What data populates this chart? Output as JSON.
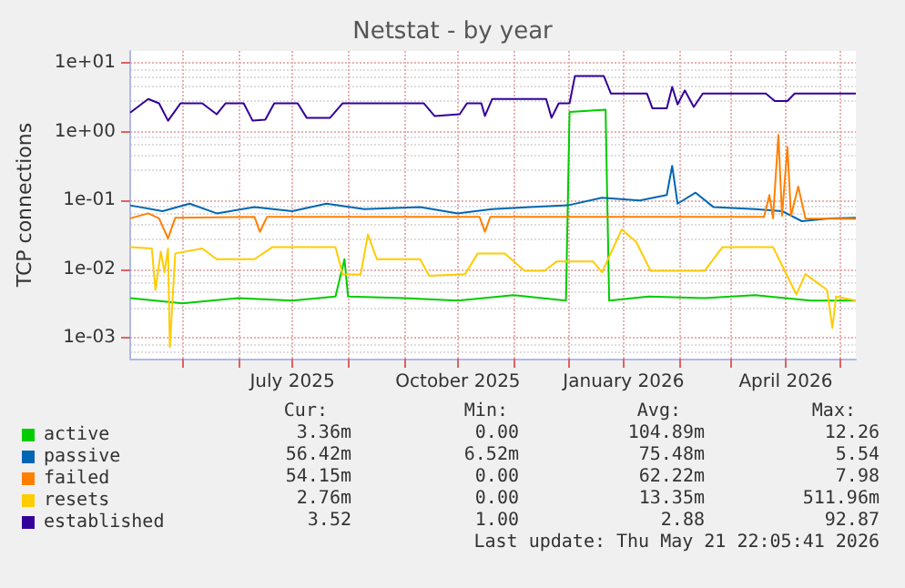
{
  "chart_data": {
    "type": "line",
    "title": "Netstat - by year",
    "ylabel": "TCP connections",
    "log": true,
    "grid": true,
    "legend": "bottom left",
    "marker": "none",
    "xlim": [
      "2025-04-02",
      "2026-05-10"
    ],
    "ylim": [
      0.0005,
      15
    ],
    "xticks": [
      {
        "value": "2025-05-01",
        "label": null
      },
      {
        "value": "2025-06-01",
        "label": null
      },
      {
        "value": "2025-07-01",
        "label": "July 2025"
      },
      {
        "value": "2025-08-01",
        "label": null
      },
      {
        "value": "2025-09-01",
        "label": null
      },
      {
        "value": "2025-10-01",
        "label": "October 2025"
      },
      {
        "value": "2025-11-01",
        "label": null
      },
      {
        "value": "2025-12-01",
        "label": null
      },
      {
        "value": "2026-01-01",
        "label": "January 2026"
      },
      {
        "value": "2026-02-01",
        "label": null
      },
      {
        "value": "2026-03-01",
        "label": null
      },
      {
        "value": "2026-04-01",
        "label": "April 2026"
      },
      {
        "value": "2026-05-01",
        "label": null
      }
    ],
    "yticks": [
      {
        "value": 0.001,
        "label": "1e-03"
      },
      {
        "value": 0.01,
        "label": "1e-02"
      },
      {
        "value": 0.1,
        "label": "1e-01"
      },
      {
        "value": 1,
        "label": "1e+00"
      },
      {
        "value": 10,
        "label": "1e+01"
      }
    ],
    "series": [
      {
        "name": "active",
        "color": "#00cc00",
        "x": [
          "2025-04-02",
          "2025-05-01",
          "2025-06-01",
          "2025-07-01",
          "2025-07-25",
          "2025-07-30",
          "2025-08-01",
          "2025-09-01",
          "2025-10-01",
          "2025-11-01",
          "2025-11-30",
          "2025-12-02",
          "2025-12-22",
          "2025-12-24",
          "2026-01-15",
          "2026-02-15",
          "2026-03-15",
          "2026-04-15",
          "2026-05-10"
        ],
        "values": [
          0.0038,
          0.0032,
          0.0038,
          0.0035,
          0.004,
          0.014,
          0.004,
          0.0038,
          0.0035,
          0.0042,
          0.0035,
          1.95,
          2.1,
          0.0035,
          0.004,
          0.0038,
          0.0042,
          0.0035,
          0.0035
        ]
      },
      {
        "name": "passive",
        "color": "#0066b3",
        "x": [
          "2025-04-02",
          "2025-04-20",
          "2025-05-05",
          "2025-05-20",
          "2025-06-10",
          "2025-07-01",
          "2025-07-20",
          "2025-08-10",
          "2025-09-10",
          "2025-10-01",
          "2025-10-20",
          "2025-11-10",
          "2025-12-01",
          "2025-12-20",
          "2026-01-10",
          "2026-01-25",
          "2026-01-28",
          "2026-01-31",
          "2026-02-10",
          "2026-02-20",
          "2026-03-15",
          "2026-03-30",
          "2026-04-10",
          "2026-04-25",
          "2026-05-10"
        ],
        "values": [
          0.085,
          0.07,
          0.09,
          0.065,
          0.08,
          0.07,
          0.09,
          0.075,
          0.08,
          0.065,
          0.075,
          0.08,
          0.085,
          0.11,
          0.1,
          0.12,
          0.32,
          0.09,
          0.13,
          0.08,
          0.075,
          0.07,
          0.05,
          0.055,
          0.056
        ]
      },
      {
        "name": "failed",
        "color": "#ff8000",
        "x": [
          "2025-04-02",
          "2025-04-12",
          "2025-04-18",
          "2025-04-23",
          "2025-04-27",
          "2025-06-10",
          "2025-06-13",
          "2025-06-17",
          "2025-10-13",
          "2025-10-16",
          "2025-10-19",
          "2026-03-20",
          "2026-03-23",
          "2026-03-25",
          "2026-03-28",
          "2026-03-30",
          "2026-04-02",
          "2026-04-04",
          "2026-04-08",
          "2026-04-12",
          "2026-05-10"
        ],
        "values": [
          0.055,
          0.065,
          0.055,
          0.028,
          0.056,
          0.058,
          0.035,
          0.058,
          0.058,
          0.035,
          0.058,
          0.058,
          0.12,
          0.055,
          0.9,
          0.06,
          0.6,
          0.06,
          0.16,
          0.055,
          0.054
        ]
      },
      {
        "name": "resets",
        "color": "#ffcc00",
        "x": [
          "2025-04-02",
          "2025-04-14",
          "2025-04-16",
          "2025-04-19",
          "2025-04-21",
          "2025-04-23",
          "2025-04-24",
          "2025-04-27",
          "2025-05-12",
          "2025-05-20",
          "2025-06-10",
          "2025-06-20",
          "2025-07-25",
          "2025-07-29",
          "2025-08-08",
          "2025-08-12",
          "2025-08-17",
          "2025-09-10",
          "2025-09-15",
          "2025-10-05",
          "2025-10-12",
          "2025-10-27",
          "2025-11-07",
          "2025-11-18",
          "2025-11-25",
          "2025-12-15",
          "2025-12-20",
          "2025-12-31",
          "2026-01-08",
          "2026-01-16",
          "2026-02-15",
          "2026-02-25",
          "2026-03-25",
          "2026-04-07",
          "2026-04-12",
          "2026-04-24",
          "2026-04-27",
          "2026-04-29",
          "2026-05-10"
        ],
        "values": [
          0.021,
          0.02,
          0.005,
          0.018,
          0.009,
          0.02,
          0.00074,
          0.017,
          0.02,
          0.014,
          0.014,
          0.021,
          0.021,
          0.0084,
          0.0084,
          0.032,
          0.014,
          0.014,
          0.008,
          0.0085,
          0.017,
          0.017,
          0.0095,
          0.0095,
          0.013,
          0.013,
          0.009,
          0.038,
          0.025,
          0.0095,
          0.0095,
          0.021,
          0.021,
          0.0043,
          0.0085,
          0.005,
          0.0014,
          0.004,
          0.0035
        ]
      },
      {
        "name": "established",
        "color": "#330099",
        "x": [
          "2025-04-02",
          "2025-04-12",
          "2025-04-18",
          "2025-04-23",
          "2025-04-30",
          "2025-05-12",
          "2025-05-20",
          "2025-05-25",
          "2025-06-04",
          "2025-06-09",
          "2025-06-16",
          "2025-06-21",
          "2025-07-04",
          "2025-07-09",
          "2025-07-22",
          "2025-07-29",
          "2025-09-12",
          "2025-09-18",
          "2025-10-02",
          "2025-10-06",
          "2025-10-14",
          "2025-10-16",
          "2025-10-20",
          "2025-11-19",
          "2025-11-22",
          "2025-11-26",
          "2025-12-02",
          "2025-12-05",
          "2025-12-21",
          "2025-12-25",
          "2026-01-14",
          "2026-01-17",
          "2026-01-25",
          "2026-01-28",
          "2026-01-31",
          "2026-02-04",
          "2026-02-09",
          "2026-02-14",
          "2026-03-21",
          "2026-03-26",
          "2026-04-02",
          "2026-04-06",
          "2026-05-10"
        ],
        "values": [
          1.9,
          3.0,
          2.6,
          1.45,
          2.6,
          2.6,
          1.8,
          2.6,
          2.6,
          1.45,
          1.5,
          2.6,
          2.6,
          1.6,
          1.6,
          2.6,
          2.6,
          1.7,
          1.8,
          2.6,
          2.6,
          1.7,
          3.0,
          3.0,
          1.6,
          2.6,
          2.6,
          6.5,
          6.5,
          3.6,
          3.6,
          2.2,
          2.2,
          4.5,
          2.5,
          4.0,
          2.3,
          3.6,
          3.6,
          2.8,
          2.8,
          3.6,
          3.6
        ]
      }
    ],
    "annotations": [
      "Cur:",
      "Min:",
      "Avg:",
      "Max:",
      "3.36m",
      "0.00",
      "104.89m",
      "12.26",
      "56.42m",
      "6.52m",
      "75.48m",
      "5.54",
      "54.15m",
      "0.00",
      "62.22m",
      "7.98",
      "2.76m",
      "0.00",
      "13.35m",
      "511.96m",
      "3.52",
      "1.00",
      "2.88",
      "92.87",
      "Last update: Thu May 21 22:05:41 2026"
    ]
  }
}
